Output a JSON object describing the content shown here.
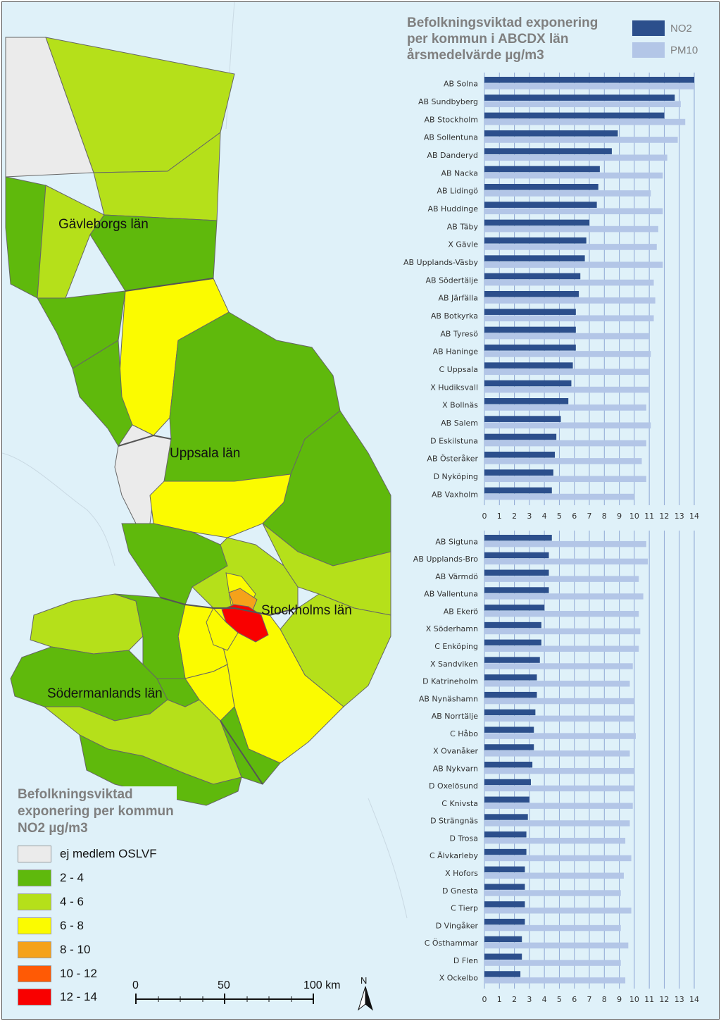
{
  "map": {
    "region_labels": [
      "Gävleborgs län",
      "Uppsala län",
      "Stockholms län",
      "Södermanlands län"
    ],
    "scale_bar": {
      "ticks": [
        "0",
        "50",
        "100 km"
      ]
    },
    "north_arrow": "N"
  },
  "legend": {
    "title_lines": [
      "Befolkningsviktad",
      "exponering per kommun",
      "NO2 µg/m3"
    ],
    "classes": [
      {
        "label": "ej medlem OSLVF",
        "color": "#ebebeb"
      },
      {
        "label": "2 - 4",
        "color": "#5fb90c"
      },
      {
        "label": "4 - 6",
        "color": "#b5e01a"
      },
      {
        "label": "6 - 8",
        "color": "#fbfb00"
      },
      {
        "label": "8 - 10",
        "color": "#f5a21a"
      },
      {
        "label": "10 - 12",
        "color": "#ff5a05"
      },
      {
        "label": "12 - 14",
        "color": "#f90000"
      }
    ]
  },
  "chart_data": {
    "type": "bar",
    "orientation": "horizontal",
    "title_lines": [
      "Befolkningsviktad exponering",
      "per kommun i ABCDX län",
      "årsmedelvärde µg/m3"
    ],
    "xlim": [
      0,
      14
    ],
    "xticks": [
      "0",
      "1",
      "2",
      "3",
      "4",
      "5",
      "6",
      "7",
      "8",
      "9",
      "10",
      "11",
      "12",
      "13",
      "14"
    ],
    "legend": [
      {
        "name": "NO2",
        "color": "#2c4f8c"
      },
      {
        "name": "PM10",
        "color": "#b3c6e7"
      }
    ],
    "panels": [
      {
        "categories": [
          "AB Solna",
          "AB Sundbyberg",
          "AB Stockholm",
          "AB Sollentuna",
          "AB Danderyd",
          "AB Nacka",
          "AB Lidingö",
          "AB Huddinge",
          "AB Täby",
          "X Gävle",
          "AB Upplands-Väsby",
          "AB Södertälje",
          "AB Järfälla",
          "AB Botkyrka",
          "AB Tyresö",
          "AB Haninge",
          "C Uppsala",
          "X Hudiksvall",
          "X Bollnäs",
          "AB Salem",
          "D Eskilstuna",
          "AB Österåker",
          "D Nyköping",
          "AB Vaxholm"
        ],
        "series": [
          {
            "name": "NO2",
            "values": [
              14.0,
              12.7,
              12.0,
              8.9,
              8.5,
              7.7,
              7.6,
              7.5,
              7.0,
              6.8,
              6.7,
              6.4,
              6.3,
              6.1,
              6.1,
              6.1,
              5.9,
              5.8,
              5.6,
              5.1,
              4.8,
              4.7,
              4.6,
              4.5
            ]
          },
          {
            "name": "PM10",
            "values": [
              14.0,
              13.1,
              13.4,
              12.9,
              12.2,
              11.9,
              11.1,
              11.9,
              11.6,
              11.5,
              11.9,
              11.3,
              11.4,
              11.3,
              11.0,
              11.1,
              11.0,
              11.0,
              10.8,
              11.1,
              10.8,
              10.5,
              10.8,
              10.0
            ]
          }
        ]
      },
      {
        "categories": [
          "AB Sigtuna",
          "AB Upplands-Bro",
          "AB Värmdö",
          "AB Vallentuna",
          "AB Ekerö",
          "X Söderhamn",
          "C Enköping",
          "X Sandviken",
          "D Katrineholm",
          "AB Nynäshamn",
          "AB Norrtälje",
          "C Håbo",
          "X Ovanåker",
          "AB Nykvarn",
          "D Oxelösund",
          "C Knivsta",
          "D Strängnäs",
          "D Trosa",
          "C Älvkarleby",
          "X Hofors",
          "D Gnesta",
          "C Tierp",
          "D Vingåker",
          "C Östhammar",
          "D Flen",
          "X Ockelbo"
        ],
        "series": [
          {
            "name": "NO2",
            "values": [
              4.5,
              4.3,
              4.3,
              4.3,
              4.0,
              3.8,
              3.8,
              3.7,
              3.5,
              3.5,
              3.4,
              3.3,
              3.3,
              3.2,
              3.1,
              3.0,
              2.9,
              2.8,
              2.8,
              2.7,
              2.7,
              2.7,
              2.7,
              2.5,
              2.5,
              2.4
            ]
          },
          {
            "name": "PM10",
            "values": [
              10.8,
              10.9,
              10.3,
              10.6,
              10.3,
              10.4,
              10.3,
              9.9,
              9.7,
              10.0,
              10.0,
              10.1,
              9.7,
              10.0,
              10.0,
              9.9,
              9.7,
              9.4,
              9.8,
              9.3,
              9.1,
              9.8,
              9.1,
              9.6,
              9.1,
              9.4
            ]
          }
        ]
      }
    ]
  }
}
